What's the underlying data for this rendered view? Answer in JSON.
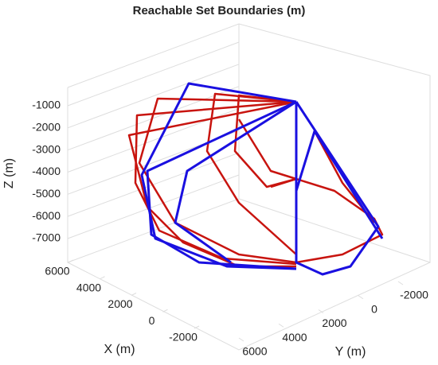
{
  "chart_data": {
    "type": "line3d",
    "title": "Reachable Set Boundaries (m)",
    "xlabel": "X (m)",
    "ylabel": "Y (m)",
    "zlabel": "Z (m)",
    "xticks": [
      -2000,
      0,
      2000,
      4000,
      6000
    ],
    "yticks": [
      -2000,
      0,
      2000,
      4000,
      6000
    ],
    "zticks": [
      -7000,
      -6000,
      -5000,
      -4000,
      -3000,
      -2000,
      -1000
    ],
    "grid": true
  }
}
